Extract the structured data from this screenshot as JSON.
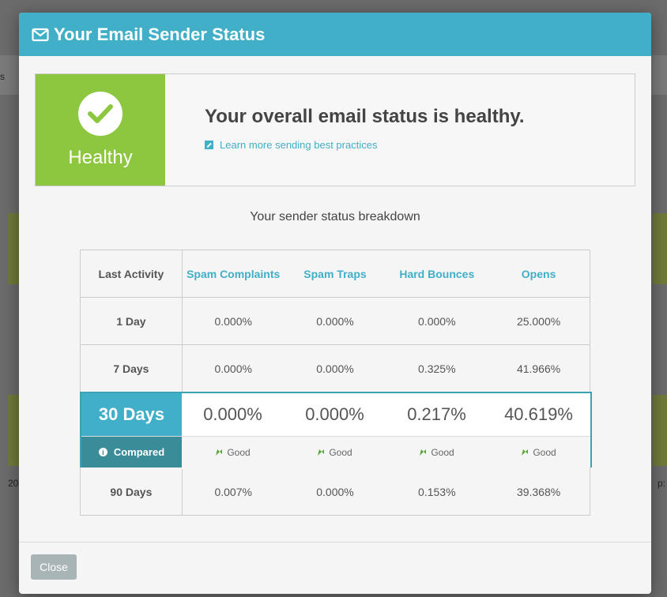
{
  "background": {
    "left_text_top": "s",
    "left_text_bottom": "20",
    "right_text_bottom": "p:"
  },
  "modal": {
    "title": "Your Email Sender Status",
    "icon": "envelope-icon",
    "status": {
      "label": "Healthy",
      "color": "#8dc63f",
      "headline": "Your overall email status is healthy.",
      "link": "Learn more sending best practices"
    },
    "breakdown_title": "Your sender status breakdown",
    "table": {
      "headers": {
        "activity": "Last Activity",
        "spam_complaints": "Spam Complaints",
        "spam_traps": "Spam Traps",
        "hard_bounces": "Hard Bounces",
        "opens": "Opens"
      },
      "rows": [
        {
          "period": "1 Day",
          "spam_complaints": "0.000%",
          "spam_traps": "0.000%",
          "hard_bounces": "0.000%",
          "opens": "25.000%"
        },
        {
          "period": "7 Days",
          "spam_complaints": "0.000%",
          "spam_traps": "0.000%",
          "hard_bounces": "0.325%",
          "opens": "41.966%"
        },
        {
          "period": "30 Days",
          "spam_complaints": "0.000%",
          "spam_traps": "0.000%",
          "hard_bounces": "0.217%",
          "opens": "40.619%",
          "compared_label": "Compared",
          "ratings": [
            "Good",
            "Good",
            "Good",
            "Good"
          ]
        },
        {
          "period": "90 Days",
          "spam_complaints": "0.007%",
          "spam_traps": "0.000%",
          "hard_bounces": "0.153%",
          "opens": "39.368%"
        }
      ]
    },
    "close_label": "Close"
  }
}
